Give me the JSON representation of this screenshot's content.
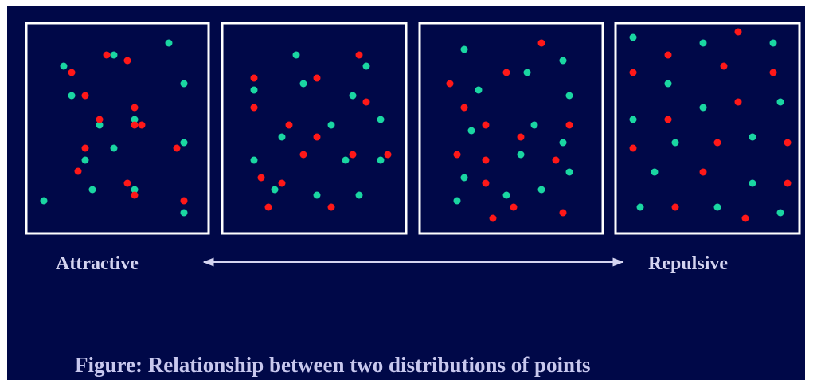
{
  "labels": {
    "left": "Attractive",
    "right": "Repulsive"
  },
  "caption": "Figure: Relationship between two distributions of points"
}
